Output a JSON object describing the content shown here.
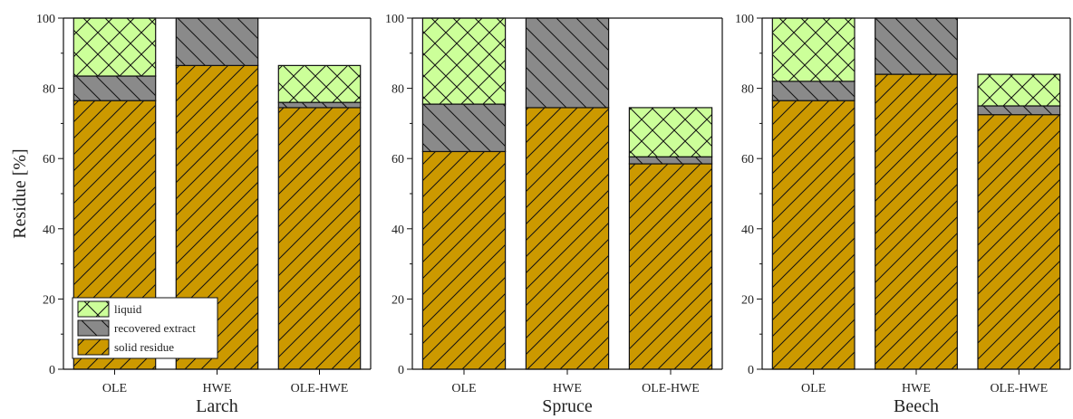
{
  "ylabel": "Residue [%]",
  "colors": {
    "solid": "#cc9900",
    "extract": "#8a8a8a",
    "liquid": "#ccff99",
    "stroke": "#111111"
  },
  "legend": {
    "position": "bottom-left",
    "items": [
      {
        "key": "liquid",
        "label": "liquid"
      },
      {
        "key": "extract",
        "label": "recovered extract"
      },
      {
        "key": "solid",
        "label": "solid residue"
      }
    ]
  },
  "chart_data": [
    {
      "type": "bar",
      "stacked": true,
      "xlabel": "Larch",
      "categories": [
        "OLE",
        "HWE",
        "OLE-HWE"
      ],
      "ylim": [
        0,
        100
      ],
      "yticks": [
        0,
        20,
        40,
        60,
        80,
        100
      ],
      "series": [
        {
          "key": "solid",
          "name": "solid residue",
          "values": [
            76.5,
            86.5,
            74.5
          ]
        },
        {
          "key": "extract",
          "name": "recovered extract",
          "values": [
            7,
            13.5,
            1.5
          ]
        },
        {
          "key": "liquid",
          "name": "liquid",
          "values": [
            16.5,
            0,
            10.5
          ]
        }
      ]
    },
    {
      "type": "bar",
      "stacked": true,
      "xlabel": "Spruce",
      "categories": [
        "OLE",
        "HWE",
        "OLE-HWE"
      ],
      "ylim": [
        0,
        100
      ],
      "yticks": [
        0,
        20,
        40,
        60,
        80,
        100
      ],
      "series": [
        {
          "key": "solid",
          "name": "solid residue",
          "values": [
            62,
            74.5,
            58.5
          ]
        },
        {
          "key": "extract",
          "name": "recovered extract",
          "values": [
            13.5,
            25.5,
            2
          ]
        },
        {
          "key": "liquid",
          "name": "liquid",
          "values": [
            24.5,
            0,
            14
          ]
        }
      ]
    },
    {
      "type": "bar",
      "stacked": true,
      "xlabel": "Beech",
      "categories": [
        "OLE",
        "HWE",
        "OLE-HWE"
      ],
      "ylim": [
        0,
        100
      ],
      "yticks": [
        0,
        20,
        40,
        60,
        80,
        100
      ],
      "series": [
        {
          "key": "solid",
          "name": "solid residue",
          "values": [
            76.5,
            84,
            72.5
          ]
        },
        {
          "key": "extract",
          "name": "recovered extract",
          "values": [
            5.5,
            16,
            2.5
          ]
        },
        {
          "key": "liquid",
          "name": "liquid",
          "values": [
            18,
            0,
            9
          ]
        }
      ]
    }
  ]
}
